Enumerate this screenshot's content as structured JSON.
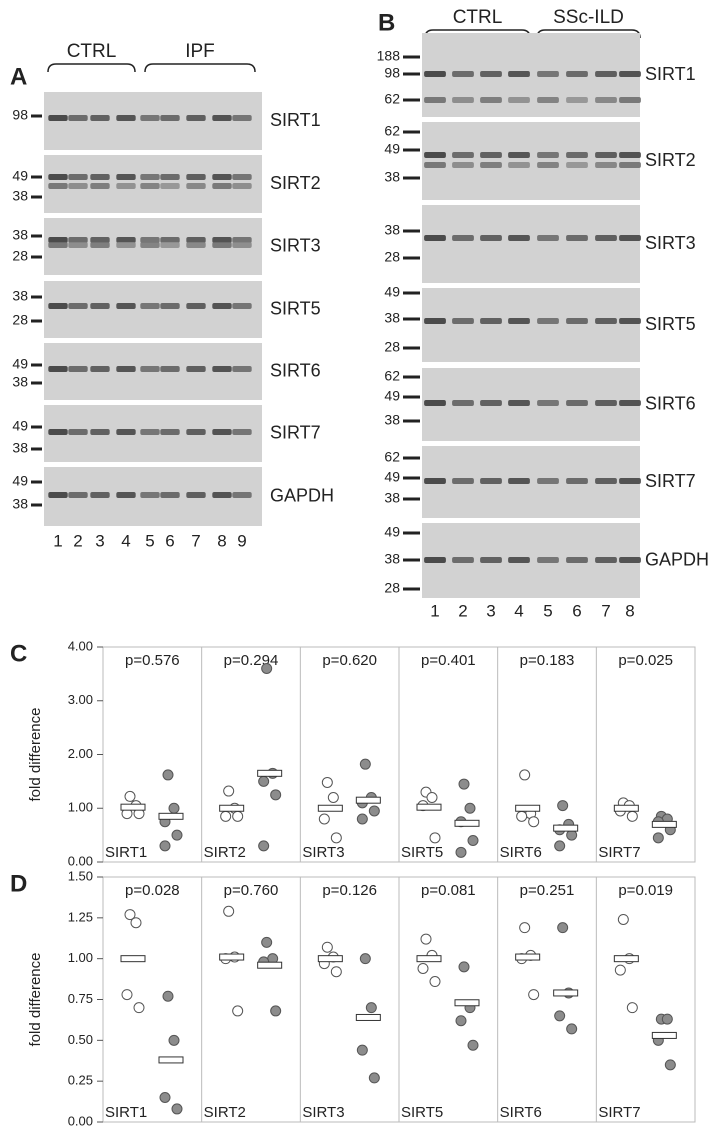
{
  "panel_a": {
    "label": "A",
    "groups": [
      "CTRL",
      "IPF"
    ],
    "lanes": [
      1,
      2,
      3,
      4,
      5,
      6,
      7,
      8,
      9
    ],
    "rows": [
      {
        "protein": "SIRT1",
        "markers": [
          98
        ]
      },
      {
        "protein": "SIRT2",
        "markers": [
          49,
          38
        ]
      },
      {
        "protein": "SIRT3",
        "markers": [
          38,
          28
        ]
      },
      {
        "protein": "SIRT5",
        "markers": [
          38,
          28
        ]
      },
      {
        "protein": "SIRT6",
        "markers": [
          49,
          38
        ]
      },
      {
        "protein": "SIRT7",
        "markers": [
          49,
          38
        ]
      },
      {
        "protein": "GAPDH",
        "markers": [
          49,
          38
        ]
      }
    ]
  },
  "panel_b": {
    "label": "B",
    "groups": [
      "CTRL",
      "SSc-ILD"
    ],
    "lanes": [
      1,
      2,
      3,
      4,
      5,
      6,
      7,
      8
    ],
    "rows": [
      {
        "protein": "SIRT1",
        "markers": [
          188,
          98,
          62
        ]
      },
      {
        "protein": "SIRT2",
        "markers": [
          62,
          49,
          38
        ]
      },
      {
        "protein": "SIRT3",
        "markers": [
          38,
          28
        ]
      },
      {
        "protein": "SIRT5",
        "markers": [
          49,
          38,
          28
        ]
      },
      {
        "protein": "SIRT6",
        "markers": [
          62,
          49,
          38
        ]
      },
      {
        "protein": "SIRT7",
        "markers": [
          62,
          49,
          38
        ]
      },
      {
        "protein": "GAPDH",
        "markers": [
          49,
          38,
          28
        ]
      }
    ]
  },
  "chart_data": [
    {
      "type": "dot",
      "panel": "C",
      "ylabel": "fold difference",
      "ctrl_color": "#ffffff",
      "disease_color": "#8c8c8c",
      "ylim": [
        0,
        4
      ],
      "yticks": [
        {
          "value": 0,
          "label": "0.00"
        },
        {
          "value": 1,
          "label": "1.00"
        },
        {
          "value": 2,
          "label": "2.00"
        },
        {
          "value": 3,
          "label": "3.00"
        },
        {
          "value": 4,
          "label": "4.00"
        }
      ],
      "groups": [
        {
          "name": "SIRT1",
          "p": "p=0.576",
          "ctrl": [
            1.22,
            1.05,
            0.9,
            0.9
          ],
          "disease": [
            1.62,
            1.0,
            0.75,
            0.5,
            0.3
          ],
          "ctrl_mean": 1.02,
          "disease_mean": 0.85
        },
        {
          "name": "SIRT2",
          "p": "p=0.294",
          "ctrl": [
            1.32,
            1.0,
            0.85,
            0.85
          ],
          "disease": [
            3.6,
            1.65,
            1.5,
            1.25,
            0.3
          ],
          "ctrl_mean": 1.0,
          "disease_mean": 1.65
        },
        {
          "name": "SIRT3",
          "p": "p=0.620",
          "ctrl": [
            1.48,
            1.2,
            0.8,
            0.45
          ],
          "disease": [
            1.82,
            1.2,
            1.1,
            0.95,
            0.8
          ],
          "ctrl_mean": 1.0,
          "disease_mean": 1.15
        },
        {
          "name": "SIRT5",
          "p": "p=0.401",
          "ctrl": [
            1.3,
            1.2,
            1.05,
            0.45
          ],
          "disease": [
            1.45,
            1.0,
            0.75,
            0.4,
            0.18
          ],
          "ctrl_mean": 1.02,
          "disease_mean": 0.72
        },
        {
          "name": "SIRT6",
          "p": "p=0.183",
          "ctrl": [
            1.62,
            0.9,
            0.85,
            0.75
          ],
          "disease": [
            1.05,
            0.7,
            0.6,
            0.5,
            0.3
          ],
          "ctrl_mean": 1.0,
          "disease_mean": 0.63
        },
        {
          "name": "SIRT7",
          "p": "p=0.025",
          "ctrl": [
            1.1,
            1.05,
            0.95,
            0.85
          ],
          "disease": [
            0.85,
            0.8,
            0.75,
            0.6,
            0.45
          ],
          "ctrl_mean": 1.0,
          "disease_mean": 0.7
        }
      ]
    },
    {
      "type": "dot",
      "panel": "D",
      "ylabel": "fold difference",
      "ctrl_color": "#ffffff",
      "disease_color": "#8c8c8c",
      "ylim": [
        0,
        1.5
      ],
      "yticks": [
        {
          "value": 0,
          "label": "0.00"
        },
        0.25,
        {
          "value": 0.5,
          "label": "0.50"
        },
        0.75,
        {
          "value": 1,
          "label": "1.00"
        },
        1.25,
        {
          "value": 1.5,
          "label": "1.50"
        }
      ],
      "groups": [
        {
          "name": "SIRT1",
          "p": "p=0.028",
          "ctrl": [
            1.27,
            1.22,
            0.78,
            0.7
          ],
          "disease": [
            0.77,
            0.5,
            0.15,
            0.08
          ],
          "ctrl_mean": 1.0,
          "disease_mean": 0.38
        },
        {
          "name": "SIRT2",
          "p": "p=0.760",
          "ctrl": [
            1.29,
            1.01,
            1.0,
            0.68
          ],
          "disease": [
            1.1,
            1.0,
            0.98,
            0.68
          ],
          "ctrl_mean": 1.01,
          "disease_mean": 0.96
        },
        {
          "name": "SIRT3",
          "p": "p=0.126",
          "ctrl": [
            1.07,
            1.01,
            0.97,
            0.92
          ],
          "disease": [
            1.0,
            0.7,
            0.44,
            0.27
          ],
          "ctrl_mean": 1.0,
          "disease_mean": 0.64
        },
        {
          "name": "SIRT5",
          "p": "p=0.081",
          "ctrl": [
            1.12,
            1.02,
            0.94,
            0.86
          ],
          "disease": [
            0.95,
            0.7,
            0.62,
            0.47
          ],
          "ctrl_mean": 1.0,
          "disease_mean": 0.73
        },
        {
          "name": "SIRT6",
          "p": "p=0.251",
          "ctrl": [
            1.19,
            1.02,
            1.0,
            0.78
          ],
          "disease": [
            1.19,
            0.79,
            0.65,
            0.57
          ],
          "ctrl_mean": 1.01,
          "disease_mean": 0.79
        },
        {
          "name": "SIRT7",
          "p": "p=0.019",
          "ctrl": [
            1.24,
            1.0,
            0.93,
            0.7
          ],
          "disease": [
            0.63,
            0.63,
            0.5,
            0.35
          ],
          "ctrl_mean": 1.0,
          "disease_mean": 0.53
        }
      ]
    }
  ]
}
